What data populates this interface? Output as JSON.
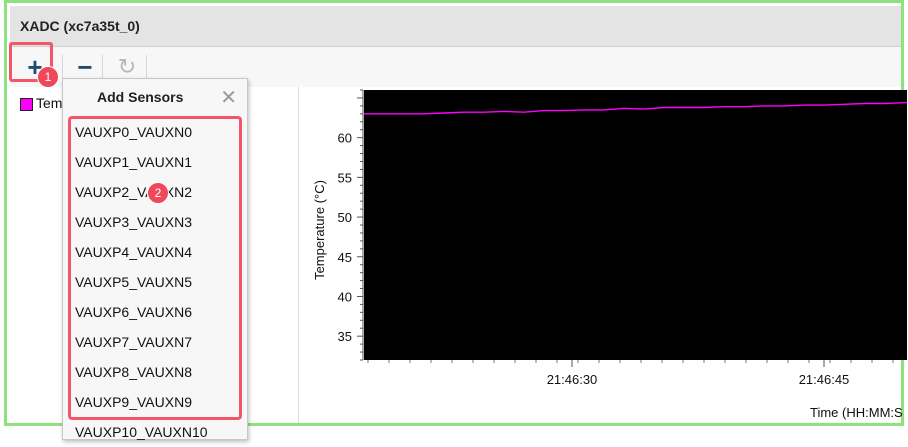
{
  "window": {
    "title": "XADC (xc7a35t_0)"
  },
  "toolbar": {
    "add_icon": "+",
    "remove_icon": "−",
    "refresh_icon": "↻"
  },
  "legend": {
    "label": "Tem",
    "color": "#ff00ff"
  },
  "dropdown": {
    "title": "Add Sensors",
    "close_icon": "✕",
    "items": [
      "VAUXP0_VAUXN0",
      "VAUXP1_VAUXN1",
      "VAUXP2_VAUXN2",
      "VAUXP3_VAUXN3",
      "VAUXP4_VAUXN4",
      "VAUXP5_VAUXN5",
      "VAUXP6_VAUXN6",
      "VAUXP7_VAUXN7",
      "VAUXP8_VAUXN8",
      "VAUXP9_VAUXN9",
      "VAUXP10_VAUXN10"
    ]
  },
  "annotations": {
    "badge1": "1",
    "badge2": "2"
  },
  "chart_data": {
    "type": "line",
    "ylabel": "Temperature (°C)",
    "xlabel": "Time (HH:MM:S",
    "y_ticks": [
      35,
      40,
      45,
      50,
      55,
      60
    ],
    "x_tick_labels": [
      "21:46:30",
      "21:46:45"
    ],
    "ylim": [
      32,
      66
    ],
    "background": "#000000",
    "line_color": "#ff00ff",
    "series": [
      {
        "values": [
          63,
          63,
          63,
          63,
          63.1,
          63.2,
          63.2,
          63.3,
          63.2,
          63.4,
          63.4,
          63.5,
          63.5,
          63.7,
          63.6,
          63.8,
          63.8,
          63.8,
          63.9,
          63.9,
          64,
          64,
          64.1,
          64.1,
          64.2,
          64.3,
          64.3,
          64.4,
          64.5
        ]
      }
    ]
  }
}
